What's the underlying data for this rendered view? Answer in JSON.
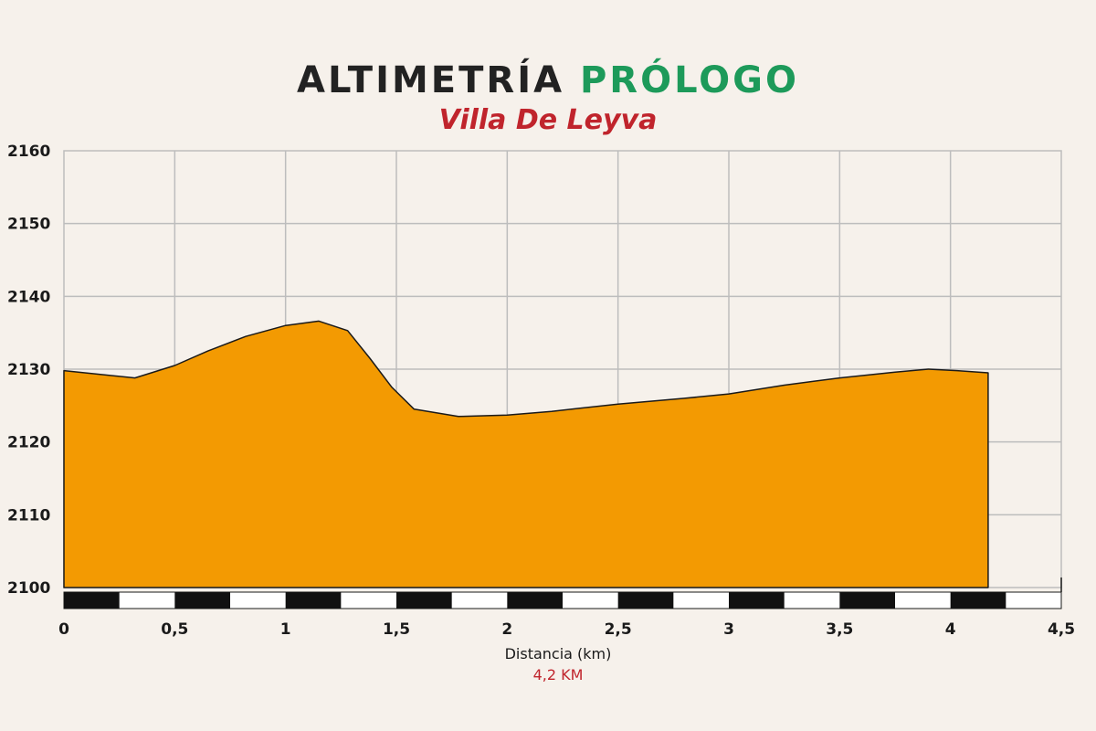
{
  "title": {
    "main": "ALTIMETRÍA",
    "accent": "PRÓLOGO",
    "subtitle": "Villa De Leyva"
  },
  "colors": {
    "background": "#f6f1eb",
    "title": "#222222",
    "accent": "#1d9a5a",
    "subtitle": "#c0242c",
    "fill": "#f39a02",
    "grid": "#bdbdbd",
    "outline": "#1a1a1a"
  },
  "chart_data": {
    "type": "area",
    "xlabel": "Distancia (km)",
    "total_distance_label": "4,2 KM",
    "xlim": [
      0,
      4.5
    ],
    "ylim": [
      2100,
      2160
    ],
    "x_ticks": [
      "0",
      "0,5",
      "1",
      "1,5",
      "2",
      "2,5",
      "3",
      "3,5",
      "4",
      "4,5"
    ],
    "y_ticks": [
      "2160",
      "2150",
      "2140",
      "2130",
      "2120",
      "2110",
      "2100"
    ],
    "grid": true,
    "distance_scale_bar": true,
    "series": [
      {
        "x": [
          0,
          0.32,
          0.5,
          0.65,
          0.82,
          1.0,
          1.15,
          1.28,
          1.38,
          1.48,
          1.58,
          1.78,
          2.0,
          2.2,
          2.5,
          2.8,
          3.0,
          3.25,
          3.5,
          3.75,
          3.9,
          4.03,
          4.17
        ],
        "y": [
          2129.8,
          2128.8,
          2130.5,
          2132.5,
          2134.5,
          2136.0,
          2136.6,
          2135.3,
          2131.5,
          2127.5,
          2124.5,
          2123.5,
          2123.7,
          2124.2,
          2125.2,
          2126.0,
          2126.6,
          2127.8,
          2128.8,
          2129.6,
          2130.0,
          2129.8,
          2129.5
        ]
      }
    ]
  }
}
